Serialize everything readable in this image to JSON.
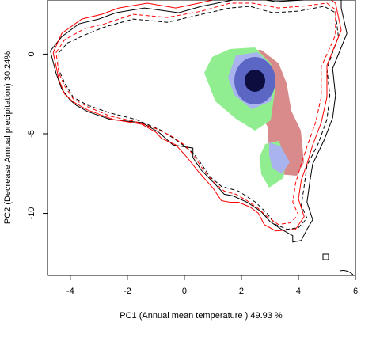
{
  "chart_data": {
    "type": "niche-overlap contour plot",
    "xlabel": "PC1 (Annual mean temperature ) 49.93 %",
    "ylabel": "PC2 (Decrease Annual precipitation) 30.24%",
    "xlim": [
      -4.8,
      6.0
    ],
    "ylim": [
      -13.9,
      3.4
    ],
    "x_ticks": [
      -4,
      -2,
      0,
      2,
      4,
      6
    ],
    "x_tick_labels": [
      "-4",
      "-2",
      "0",
      "2",
      "4",
      "6"
    ],
    "y_ticks": [
      0,
      -5,
      -10
    ],
    "y_tick_labels": [
      "0",
      "-5",
      "-10"
    ],
    "colors": {
      "occupied_red": "#d98a8a",
      "occupied_green": "#90ee90",
      "overlap_blue_light": "#a9b3ee",
      "overlap_blue_dark": "#0d0d40",
      "contour_black": "#000000",
      "contour_red": "#ff0000"
    },
    "series": [
      {
        "color": "#000000",
        "style": "solid",
        "points": [
          [
            -4.7,
            0.2
          ],
          [
            -4.3,
            1.1
          ],
          [
            -3.7,
            1.9
          ],
          [
            -3.0,
            2.2
          ],
          [
            -2.4,
            2.6
          ],
          [
            -1.4,
            2.9
          ],
          [
            -0.2,
            2.6
          ],
          [
            0.6,
            3.0
          ],
          [
            1.7,
            3.4
          ],
          [
            2.5,
            3.5
          ],
          [
            3.2,
            3.3
          ],
          [
            4.2,
            3.4
          ],
          [
            4.8,
            3.6
          ],
          [
            5.5,
            3.6
          ],
          [
            5.5,
            2.9
          ],
          [
            5.7,
            1.3
          ],
          [
            5.2,
            -0.9
          ],
          [
            5.3,
            -2.6
          ],
          [
            5.2,
            -4.0
          ],
          [
            4.9,
            -5.4
          ],
          [
            4.5,
            -6.9
          ],
          [
            4.4,
            -8.0
          ],
          [
            4.3,
            -9.3
          ],
          [
            4.5,
            -10.4
          ],
          [
            4.3,
            -11.0
          ],
          [
            4.1,
            -11.7
          ],
          [
            3.8,
            -11.8
          ],
          [
            3.8,
            -11.4
          ],
          [
            3.4,
            -11.0
          ],
          [
            3.0,
            -10.5
          ],
          [
            2.7,
            -9.9
          ],
          [
            2.2,
            -9.3
          ],
          [
            1.7,
            -8.9
          ],
          [
            1.4,
            -8.8
          ],
          [
            1.1,
            -8.2
          ],
          [
            0.6,
            -7.3
          ],
          [
            0.3,
            -6.5
          ],
          [
            0.3,
            -5.9
          ],
          [
            -0.4,
            -5.7
          ],
          [
            -0.9,
            -4.9
          ],
          [
            -1.5,
            -4.3
          ],
          [
            -2.6,
            -4.1
          ],
          [
            -3.4,
            -3.6
          ],
          [
            -3.8,
            -3.2
          ],
          [
            -4.0,
            -2.9
          ],
          [
            -4.3,
            -2.2
          ],
          [
            -4.5,
            -1.2
          ],
          [
            -4.7,
            0.2
          ]
        ]
      },
      {
        "color": "#000000",
        "style": "dashed",
        "points": [
          [
            -4.4,
            0.1
          ],
          [
            -4.1,
            0.7
          ],
          [
            -3.5,
            1.2
          ],
          [
            -2.8,
            1.7
          ],
          [
            -1.8,
            2.2
          ],
          [
            -0.6,
            2.0
          ],
          [
            0.6,
            2.5
          ],
          [
            1.6,
            2.9
          ],
          [
            2.3,
            3.0
          ],
          [
            3.1,
            2.6
          ],
          [
            4.0,
            2.7
          ],
          [
            4.9,
            3.0
          ],
          [
            5.3,
            2.6
          ],
          [
            5.4,
            1.1
          ],
          [
            5.0,
            -0.9
          ],
          [
            5.1,
            -2.6
          ],
          [
            5.0,
            -4.1
          ],
          [
            4.7,
            -5.6
          ],
          [
            4.3,
            -7.0
          ],
          [
            4.2,
            -8.3
          ],
          [
            4.1,
            -9.5
          ],
          [
            4.3,
            -10.3
          ],
          [
            4.0,
            -10.9
          ],
          [
            3.6,
            -11.0
          ],
          [
            3.2,
            -10.7
          ],
          [
            2.9,
            -10.0
          ],
          [
            2.5,
            -9.3
          ],
          [
            1.9,
            -8.6
          ],
          [
            1.3,
            -8.3
          ],
          [
            0.9,
            -7.7
          ],
          [
            0.6,
            -6.9
          ],
          [
            0.3,
            -6.2
          ],
          [
            -0.2,
            -5.5
          ],
          [
            -0.8,
            -4.8
          ],
          [
            -1.7,
            -4.1
          ],
          [
            -2.6,
            -3.7
          ],
          [
            -3.4,
            -3.2
          ],
          [
            -3.9,
            -2.7
          ],
          [
            -4.2,
            -1.8
          ],
          [
            -4.4,
            -1.0
          ],
          [
            -4.4,
            0.1
          ]
        ]
      },
      {
        "color": "#ff0000",
        "style": "solid",
        "points": [
          [
            -4.6,
            0.1
          ],
          [
            -4.3,
            1.3
          ],
          [
            -3.6,
            2.2
          ],
          [
            -2.9,
            2.5
          ],
          [
            -2.3,
            2.9
          ],
          [
            -1.3,
            3.2
          ],
          [
            -0.3,
            2.9
          ],
          [
            0.5,
            3.2
          ],
          [
            1.5,
            3.6
          ],
          [
            2.4,
            3.6
          ],
          [
            3.3,
            3.5
          ],
          [
            4.3,
            3.6
          ],
          [
            5.0,
            3.6
          ],
          [
            5.3,
            3.2
          ],
          [
            5.5,
            1.5
          ],
          [
            5.0,
            -0.7
          ],
          [
            5.0,
            -2.7
          ],
          [
            4.8,
            -4.3
          ],
          [
            4.5,
            -5.7
          ],
          [
            4.3,
            -6.9
          ],
          [
            4.1,
            -7.9
          ],
          [
            4.0,
            -9.1
          ],
          [
            4.2,
            -10.2
          ],
          [
            3.9,
            -11.0
          ],
          [
            3.2,
            -11.1
          ],
          [
            2.8,
            -10.7
          ],
          [
            2.6,
            -10.0
          ],
          [
            2.3,
            -9.6
          ],
          [
            1.9,
            -9.3
          ],
          [
            1.6,
            -9.3
          ],
          [
            1.3,
            -9.2
          ],
          [
            1.0,
            -8.4
          ],
          [
            0.5,
            -7.4
          ],
          [
            0.1,
            -6.5
          ],
          [
            -0.3,
            -5.7
          ],
          [
            -0.8,
            -5.3
          ],
          [
            -1.0,
            -4.9
          ],
          [
            -1.5,
            -4.4
          ],
          [
            -2.5,
            -4.1
          ],
          [
            -3.4,
            -3.5
          ],
          [
            -3.9,
            -3.0
          ],
          [
            -4.2,
            -2.5
          ],
          [
            -4.4,
            -1.6
          ],
          [
            -4.6,
            0.1
          ]
        ]
      },
      {
        "color": "#ff0000",
        "style": "dashed",
        "points": [
          [
            -4.5,
            0.1
          ],
          [
            -4.2,
            0.9
          ],
          [
            -3.5,
            1.6
          ],
          [
            -2.8,
            1.9
          ],
          [
            -1.8,
            2.5
          ],
          [
            -0.6,
            2.3
          ],
          [
            0.6,
            2.7
          ],
          [
            1.6,
            3.2
          ],
          [
            2.4,
            3.2
          ],
          [
            3.3,
            2.9
          ],
          [
            4.1,
            3.0
          ],
          [
            5.0,
            3.2
          ],
          [
            5.3,
            2.8
          ],
          [
            5.3,
            1.2
          ],
          [
            4.8,
            -0.8
          ],
          [
            4.8,
            -2.7
          ],
          [
            4.6,
            -4.3
          ],
          [
            4.3,
            -5.8
          ],
          [
            4.1,
            -6.9
          ],
          [
            3.9,
            -8.1
          ],
          [
            3.8,
            -9.3
          ],
          [
            4.0,
            -10.1
          ],
          [
            3.7,
            -10.6
          ],
          [
            3.3,
            -10.7
          ],
          [
            2.9,
            -10.2
          ],
          [
            2.6,
            -9.7
          ],
          [
            2.2,
            -9.2
          ],
          [
            1.8,
            -8.8
          ],
          [
            1.4,
            -8.6
          ],
          [
            1.0,
            -8.0
          ],
          [
            0.6,
            -7.1
          ],
          [
            0.3,
            -6.3
          ],
          [
            0.0,
            -5.7
          ],
          [
            -0.5,
            -5.1
          ],
          [
            -1.1,
            -4.6
          ],
          [
            -1.8,
            -4.2
          ],
          [
            -2.6,
            -3.9
          ],
          [
            -3.4,
            -3.3
          ],
          [
            -3.9,
            -2.8
          ],
          [
            -4.2,
            -2.0
          ],
          [
            -4.4,
            -1.2
          ],
          [
            -4.5,
            0.1
          ]
        ]
      }
    ]
  }
}
